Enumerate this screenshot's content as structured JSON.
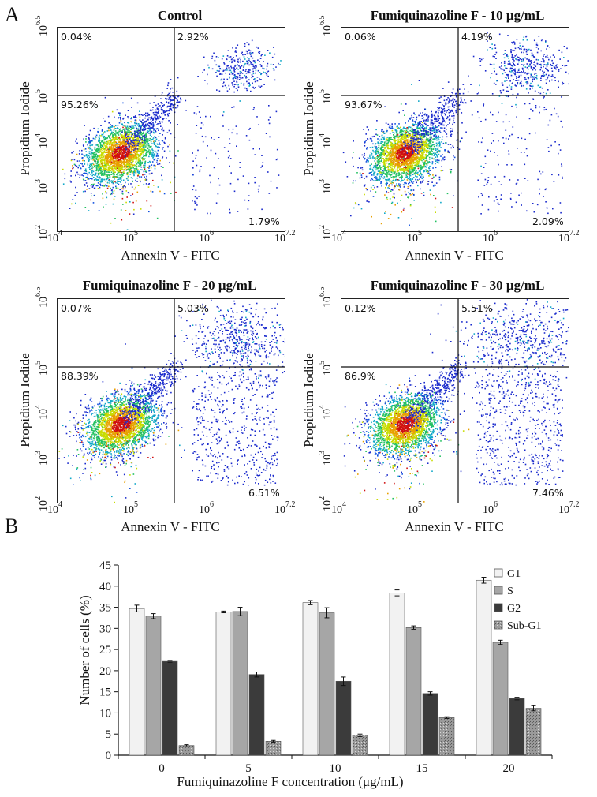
{
  "panel_a_label": "A",
  "panel_b_label": "B",
  "flow_panels": [
    {
      "title": "Control",
      "q_ul": "0.04%",
      "q_ur": "2.92%",
      "q_ll": "95.26%",
      "q_lr": "1.79%"
    },
    {
      "title": "Fumiquinazoline F - 10 μg/mL",
      "q_ul": "0.06%",
      "q_ur": "4.19%",
      "q_ll": "93.67%",
      "q_lr": "2.09%"
    },
    {
      "title": "Fumiquinazoline F - 20 μg/mL",
      "q_ul": "0.07%",
      "q_ur": "5.03%",
      "q_ll": "88.39%",
      "q_lr": "6.51%"
    },
    {
      "title": "Fumiquinazoline F - 30 μg/mL",
      "q_ul": "0.12%",
      "q_ur": "5.51%",
      "q_ll": "86.9%",
      "q_lr": "7.46%"
    }
  ],
  "flow_axes": {
    "xlabel": "Annexin V - FITC",
    "ylabel": "Propidium Iodide",
    "x_ticks": [
      {
        "base": "10",
        "exp": "4"
      },
      {
        "base": "10",
        "exp": "5"
      },
      {
        "base": "10",
        "exp": "6"
      },
      {
        "base": "10",
        "exp": "7.2"
      }
    ],
    "y_ticks": [
      {
        "base": "10",
        "exp": "2"
      },
      {
        "base": "10",
        "exp": "3"
      },
      {
        "base": "10",
        "exp": "4"
      },
      {
        "base": "10",
        "exp": "5"
      },
      {
        "base": "10",
        "exp": "6.5"
      }
    ]
  },
  "chart_data": {
    "type": "bar",
    "title": "",
    "xlabel": "Fumiquinazoline F concentration (μg/mL)",
    "ylabel": "Number of cells (%)",
    "categories": [
      "0",
      "5",
      "10",
      "15",
      "20"
    ],
    "ylim": [
      0,
      45
    ],
    "yticks": [
      0,
      5,
      10,
      15,
      20,
      25,
      30,
      35,
      40,
      45
    ],
    "legend_position": "top-right",
    "series": [
      {
        "name": "G1",
        "values": [
          34.7,
          33.9,
          36.1,
          38.4,
          41.4
        ],
        "errors": [
          0.8,
          0.2,
          0.5,
          0.7,
          0.7
        ],
        "color": "#f2f2f2"
      },
      {
        "name": "S",
        "values": [
          32.9,
          34.0,
          33.7,
          30.2,
          26.7
        ],
        "errors": [
          0.6,
          1.0,
          1.2,
          0.4,
          0.5
        ],
        "color": "#a6a6a6"
      },
      {
        "name": "G2",
        "values": [
          22.2,
          19.1,
          17.5,
          14.6,
          13.4
        ],
        "errors": [
          0.2,
          0.6,
          1.0,
          0.4,
          0.3
        ],
        "color": "#3b3b3b"
      },
      {
        "name": "Sub-G1",
        "values": [
          2.3,
          3.3,
          4.7,
          8.9,
          11.1
        ],
        "errors": [
          0.2,
          0.2,
          0.3,
          0.2,
          0.6
        ],
        "color": "#8f8f8f"
      }
    ]
  }
}
